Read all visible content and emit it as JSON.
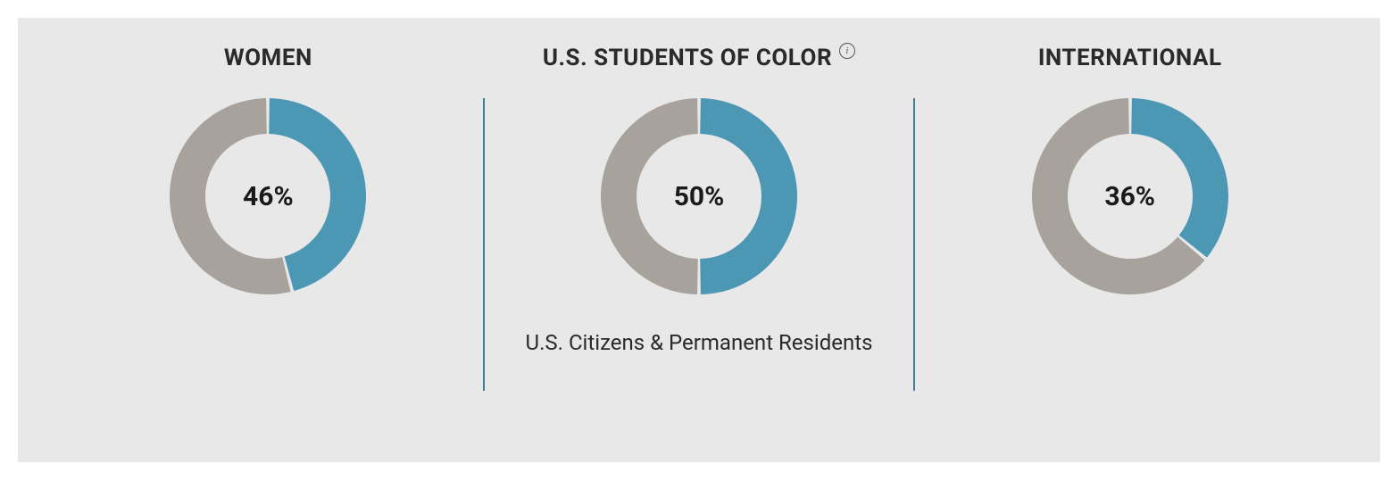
{
  "layout": {
    "background_color": "#e8e8e8",
    "divider_color": "#3b7f91",
    "text_color": "#2a2a2a",
    "value_color": "#1a1a1a"
  },
  "donut_style": {
    "outer_radius": 110,
    "inner_radius": 70,
    "filled_color": "#4b97b4",
    "remainder_color": "#a7a29c",
    "gap_degrees": 2
  },
  "typography": {
    "title_fontsize": 26,
    "title_weight": 700,
    "value_fontsize": 30,
    "value_weight": 700,
    "subtitle_fontsize": 24
  },
  "panels": [
    {
      "id": "women",
      "title": "WOMEN",
      "has_info": false,
      "percent": 46,
      "percent_label": "46%",
      "subtitle": null
    },
    {
      "id": "students-of-color",
      "title": "U.S. STUDENTS OF COLOR",
      "has_info": true,
      "percent": 50,
      "percent_label": "50%",
      "subtitle": "U.S. Citizens & Permanent Residents"
    },
    {
      "id": "international",
      "title": "INTERNATIONAL",
      "has_info": false,
      "percent": 36,
      "percent_label": "36%",
      "subtitle": null
    }
  ]
}
